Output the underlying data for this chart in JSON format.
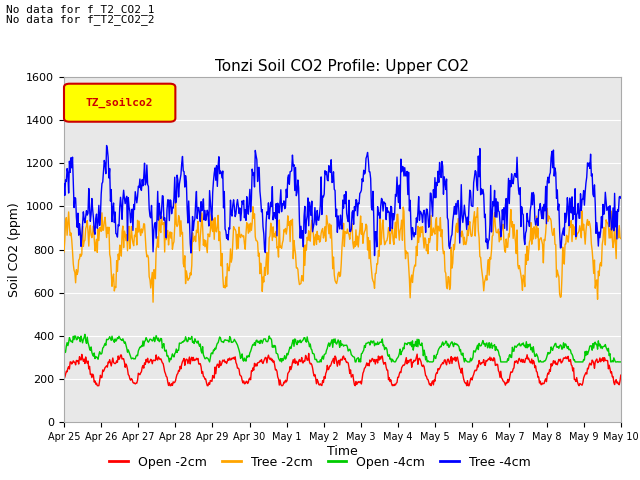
{
  "title": "Tonzi Soil CO2 Profile: Upper CO2",
  "ylabel": "Soil CO2 (ppm)",
  "xlabel": "Time",
  "annotation_lines": [
    "No data for f_T2_CO2_1",
    "No data for f_T2_CO2_2"
  ],
  "legend_label_text": "TZ_soilco2",
  "ylim": [
    0,
    1600
  ],
  "yticks": [
    0,
    200,
    400,
    600,
    800,
    1000,
    1200,
    1400,
    1600
  ],
  "x_tick_labels": [
    "Apr 25",
    "Apr 26",
    "Apr 27",
    "Apr 28",
    "Apr 29",
    "Apr 30",
    "May 1",
    "May 2",
    "May 3",
    "May 4",
    "May 5",
    "May 6",
    "May 7",
    "May 8",
    "May 9",
    "May 10"
  ],
  "series_colors": {
    "open_2cm": "#ff0000",
    "tree_2cm": "#ffa500",
    "open_4cm": "#00cc00",
    "tree_4cm": "#0000ff"
  },
  "legend_labels": [
    "Open -2cm",
    "Tree -2cm",
    "Open -4cm",
    "Tree -4cm"
  ],
  "plot_bg_color": "#e8e8e8",
  "fig_bg_color": "#ffffff",
  "grid_color": "#ffffff",
  "legend_box_facecolor": "#ffff00",
  "legend_box_edgecolor": "#cc0000",
  "legend_text_color": "#cc0000"
}
